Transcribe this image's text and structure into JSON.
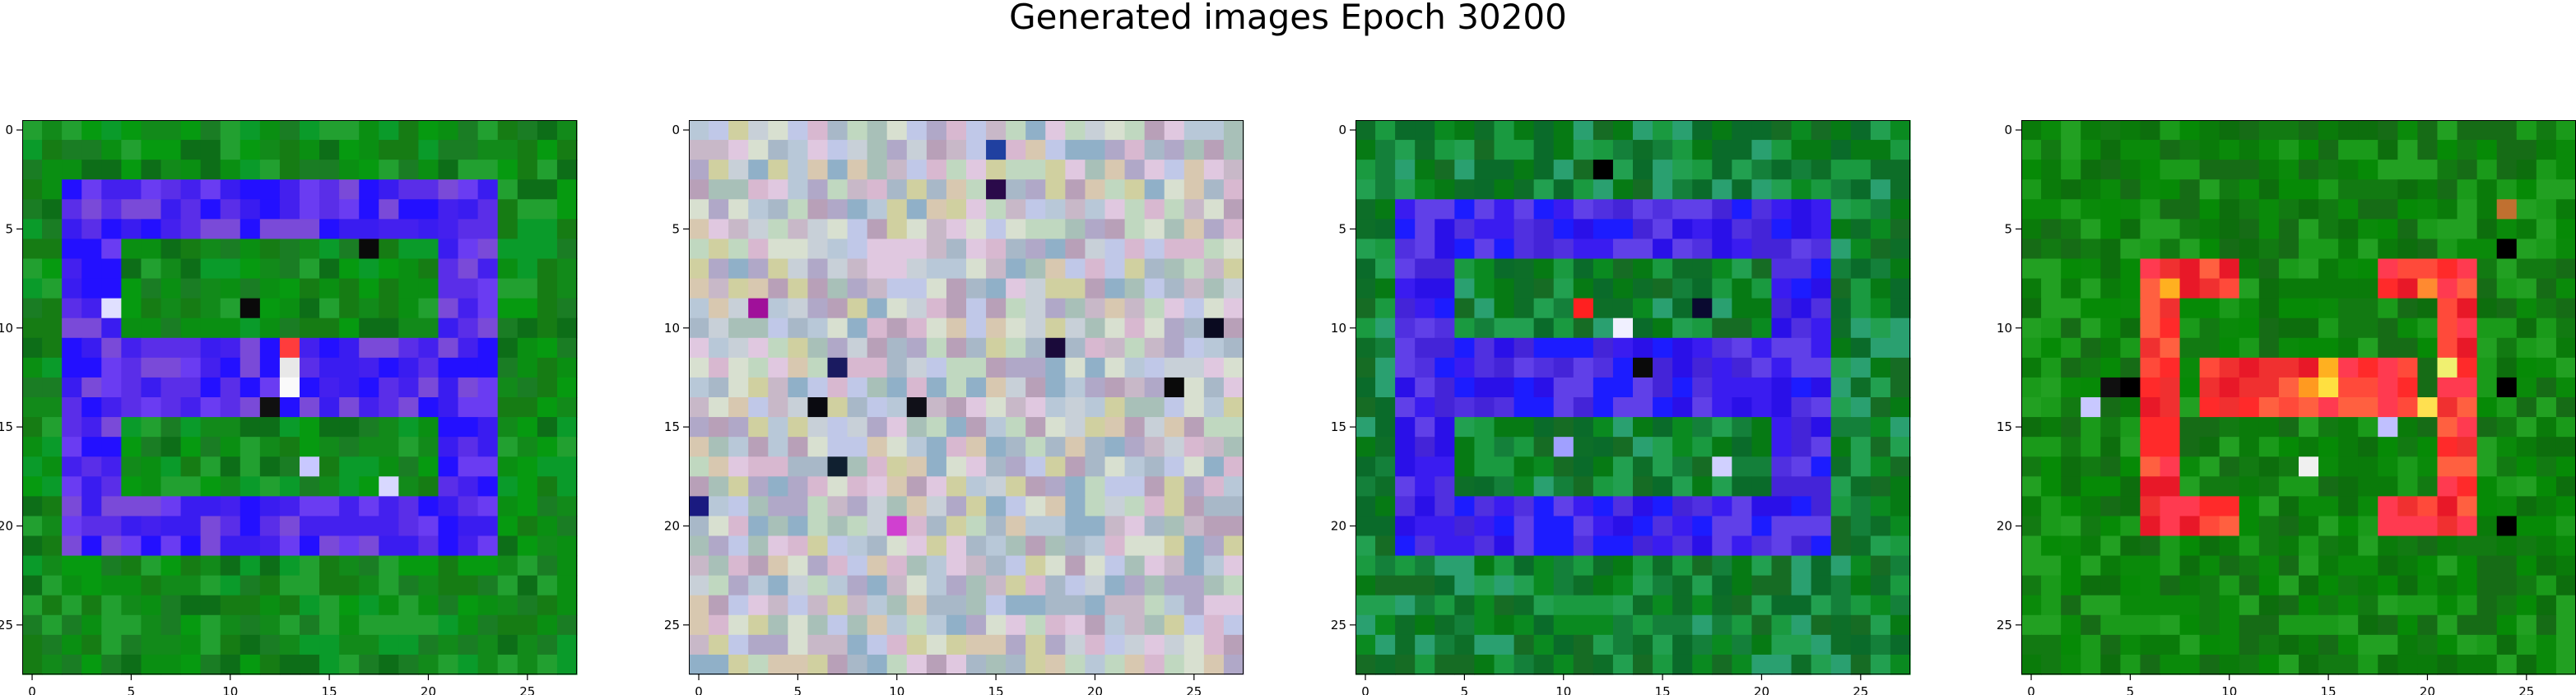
{
  "figure": {
    "suptitle": "Generated images Epoch 30200"
  },
  "chart_data": [
    {
      "type": "heatmap",
      "title": "",
      "xlabel": "",
      "ylabel": "",
      "xlim": [
        -0.5,
        27.5
      ],
      "ylim": [
        27.5,
        -0.5
      ],
      "xticks": [
        0,
        5,
        10,
        15,
        20,
        25
      ],
      "yticks": [
        0,
        5,
        10,
        15,
        20,
        25
      ],
      "grid": false,
      "description": "28x28 RGB image, green background with blue/purple rectangular frame",
      "background": "#0a8f12",
      "background_variants": [
        "#0a8f12",
        "#128a1a",
        "#069a10",
        "#1a7d24",
        "#0d6e18",
        "#22a030",
        "#0a9b2a",
        "#167c14"
      ],
      "shape_colors": [
        "#3a1cf0",
        "#5a2ee8",
        "#2310ff",
        "#6a3cf2",
        "#4420ee",
        "#7a4ad8"
      ],
      "frame": {
        "rows": [
          3,
          21
        ],
        "cols": [
          2,
          23
        ],
        "thickness": 3
      },
      "inner_bar": {
        "rows": [
          11,
          14
        ],
        "cols": [
          4,
          20
        ]
      },
      "accent_cells": [
        {
          "r": 11,
          "c": 13,
          "color": "#ff3c3c"
        },
        {
          "r": 12,
          "c": 13,
          "color": "#e8e8e8"
        },
        {
          "r": 13,
          "c": 13,
          "color": "#fafafa"
        },
        {
          "r": 9,
          "c": 11,
          "color": "#0a0a0a"
        },
        {
          "r": 14,
          "c": 12,
          "color": "#101010"
        },
        {
          "r": 17,
          "c": 14,
          "color": "#c8c8ff"
        },
        {
          "r": 18,
          "c": 18,
          "color": "#d8d8ff"
        },
        {
          "r": 9,
          "c": 4,
          "color": "#e0e0ff"
        },
        {
          "r": 6,
          "c": 17,
          "color": "#0a0a0a"
        }
      ]
    },
    {
      "type": "heatmap",
      "title": "",
      "xlabel": "",
      "ylabel": "",
      "xlim": [
        -0.5,
        27.5
      ],
      "ylim": [
        27.5,
        -0.5
      ],
      "xticks": [
        0,
        5,
        10,
        15,
        20,
        25
      ],
      "yticks": [
        0,
        5,
        10,
        15,
        20,
        25
      ],
      "grid": false,
      "description": "28x28 RGB image, pastel noise",
      "background": "#c8c2c0",
      "background_variants": [
        "#c8b8c8",
        "#b8c8d8",
        "#d8c8b0",
        "#a8b8c8",
        "#c0d8c0",
        "#d8b8d0",
        "#b0a8c8",
        "#c8d0d8",
        "#e0c8e0",
        "#a8c0b8",
        "#d0d0a0",
        "#b8a0b8",
        "#c0c8e8",
        "#90b0c8",
        "#d8e0d0"
      ],
      "shape_colors": [],
      "frame": null,
      "inner_bar": null,
      "accent_cells": [
        {
          "r": 3,
          "c": 15,
          "color": "#2a0a4a"
        },
        {
          "r": 11,
          "c": 18,
          "color": "#1a0a3a"
        },
        {
          "r": 14,
          "c": 6,
          "color": "#0a0a10"
        },
        {
          "r": 14,
          "c": 11,
          "color": "#101018"
        },
        {
          "r": 12,
          "c": 7,
          "color": "#1a1a60"
        },
        {
          "r": 10,
          "c": 26,
          "color": "#0a0a20"
        },
        {
          "r": 17,
          "c": 7,
          "color": "#102030"
        },
        {
          "r": 19,
          "c": 0,
          "color": "#1a1a80"
        },
        {
          "r": 20,
          "c": 10,
          "color": "#d040d0"
        },
        {
          "r": 13,
          "c": 24,
          "color": "#0a0a0a"
        },
        {
          "r": 1,
          "c": 15,
          "color": "#2040a0"
        },
        {
          "r": 9,
          "c": 3,
          "color": "#a0109a"
        }
      ]
    },
    {
      "type": "heatmap",
      "title": "",
      "xlabel": "",
      "ylabel": "",
      "xlim": [
        -0.5,
        27.5
      ],
      "ylim": [
        27.5,
        -0.5
      ],
      "xticks": [
        0,
        5,
        10,
        15,
        20,
        25
      ],
      "yticks": [
        0,
        5,
        10,
        15,
        20,
        25
      ],
      "grid": false,
      "description": "28x28 RGB image, green background with blue/purple rectangular frame",
      "background": "#0a8a20",
      "background_variants": [
        "#0a8a20",
        "#14803a",
        "#067a14",
        "#1a9a40",
        "#0d6e28",
        "#22a050",
        "#0a6b2a",
        "#166c24",
        "#2aa070"
      ],
      "shape_colors": [
        "#3a1cf0",
        "#2a10e8",
        "#5030e0",
        "#1c1cff",
        "#6040e8",
        "#4424d8"
      ],
      "frame": {
        "rows": [
          4,
          21
        ],
        "cols": [
          2,
          23
        ],
        "thickness": 3
      },
      "inner_bar": {
        "rows": [
          11,
          14
        ],
        "cols": [
          5,
          20
        ]
      },
      "accent_cells": [
        {
          "r": 9,
          "c": 11,
          "color": "#ff2020"
        },
        {
          "r": 10,
          "c": 13,
          "color": "#f0f0ff"
        },
        {
          "r": 12,
          "c": 14,
          "color": "#0a0a0a"
        },
        {
          "r": 2,
          "c": 12,
          "color": "#000000"
        },
        {
          "r": 9,
          "c": 17,
          "color": "#0a0a30"
        },
        {
          "r": 17,
          "c": 18,
          "color": "#d0d0ff"
        },
        {
          "r": 16,
          "c": 10,
          "color": "#a0a0ff"
        }
      ]
    },
    {
      "type": "heatmap",
      "title": "",
      "xlabel": "",
      "ylabel": "",
      "xlim": [
        -0.5,
        27.5
      ],
      "ylim": [
        27.5,
        -0.5
      ],
      "xticks": [
        0,
        5,
        10,
        15,
        20,
        25
      ],
      "yticks": [
        0,
        5,
        10,
        15,
        20,
        25
      ],
      "grid": false,
      "description": "28x28 RGB image, green background with red/orange shape",
      "background": "#0a8a0a",
      "background_variants": [
        "#0a8a0a",
        "#127a12",
        "#068a06",
        "#1a9a1a",
        "#0d6e0d",
        "#22a022",
        "#0a7b0a",
        "#166c16"
      ],
      "shape_colors": [
        "#ff2a2a",
        "#ff4a3a",
        "#f03030",
        "#ff6040",
        "#e81828",
        "#ff3a50"
      ],
      "frame": {
        "rows": [
          7,
          20
        ],
        "cols": [
          6,
          22
        ],
        "thickness": 2,
        "open_middle_cols": [
          11,
          17
        ]
      },
      "inner_bar": {
        "rows": [
          12,
          14
        ],
        "cols": [
          9,
          19
        ]
      },
      "accent_cells": [
        {
          "r": 13,
          "c": 15,
          "color": "#ffe040"
        },
        {
          "r": 13,
          "c": 14,
          "color": "#ff9a20"
        },
        {
          "r": 12,
          "c": 15,
          "color": "#ffb020"
        },
        {
          "r": 14,
          "c": 20,
          "color": "#ffe050"
        },
        {
          "r": 12,
          "c": 21,
          "color": "#f0f070"
        },
        {
          "r": 8,
          "c": 7,
          "color": "#ffb020"
        },
        {
          "r": 8,
          "c": 20,
          "color": "#ff8a30"
        },
        {
          "r": 13,
          "c": 5,
          "color": "#000000"
        },
        {
          "r": 13,
          "c": 4,
          "color": "#101010"
        },
        {
          "r": 14,
          "c": 3,
          "color": "#c8c8ff"
        },
        {
          "r": 15,
          "c": 18,
          "color": "#c0c0ff"
        },
        {
          "r": 17,
          "c": 14,
          "color": "#f0f0f0"
        },
        {
          "r": 6,
          "c": 24,
          "color": "#000000"
        },
        {
          "r": 13,
          "c": 24,
          "color": "#000000"
        },
        {
          "r": 20,
          "c": 24,
          "color": "#000000"
        },
        {
          "r": 4,
          "c": 24,
          "color": "#c07030"
        }
      ]
    }
  ]
}
